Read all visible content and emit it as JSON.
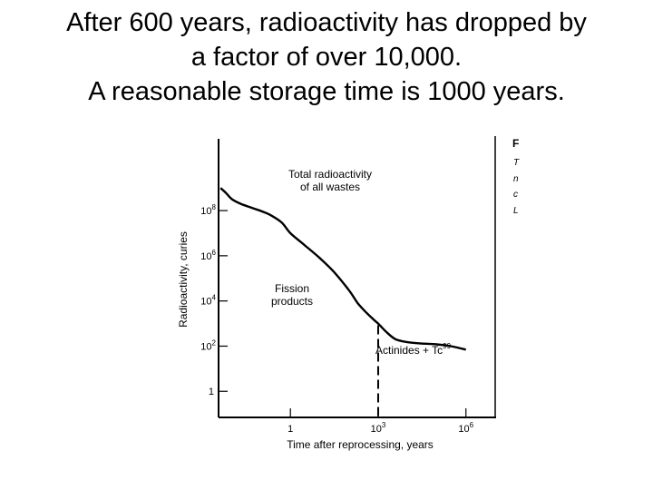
{
  "slide": {
    "line1": "After 600 years, radioactivity has dropped by",
    "line2": "a factor of over 10,000.",
    "line3": "A reasonable storage time is 1000 years."
  },
  "chart_data": {
    "type": "line",
    "xlabel": "Time after reprocessing, years",
    "ylabel": "Radioactivity, curies",
    "x_scale": "log",
    "y_scale": "log",
    "x_ticks": [
      {
        "value": 1,
        "base": "1",
        "exp": ""
      },
      {
        "value": 1000,
        "base": "10",
        "exp": "3"
      },
      {
        "value": 1000000,
        "base": "10",
        "exp": "6"
      }
    ],
    "y_ticks": [
      {
        "value": 1,
        "base": "1",
        "exp": ""
      },
      {
        "value": 100,
        "base": "10",
        "exp": "2"
      },
      {
        "value": 10000,
        "base": "10",
        "exp": "4"
      },
      {
        "value": 1000000,
        "base": "10",
        "exp": "6"
      },
      {
        "value": 100000000,
        "base": "10",
        "exp": "8"
      }
    ],
    "xlim": [
      0.0035,
      10000000
    ],
    "ylim": [
      0.07,
      150000000000
    ],
    "series": [
      {
        "name": "Total radioactivity of all wastes",
        "x": [
          0.0041,
          0.0063,
          0.01,
          0.02,
          0.05,
          0.1,
          0.2,
          0.5,
          1,
          3,
          10,
          30,
          100,
          200,
          400,
          700,
          1000,
          2000,
          4000,
          10000,
          30000,
          100000,
          300000,
          1000000
        ],
        "y": [
          1000000000,
          600000000,
          320000000,
          200000000,
          130000000,
          95000000,
          65000000,
          30000000,
          10000000,
          3000000,
          800000,
          200000,
          30000,
          8000,
          3000,
          1500,
          1000,
          400,
          200,
          150,
          130,
          120,
          100,
          70
        ]
      }
    ],
    "annotations": {
      "total_line1": "Total radioactivity",
      "total_line2": "of all wastes",
      "fission_line1": "Fission",
      "fission_line2": "products",
      "actinides_base": "Actinides + Tc",
      "actinides_sup": "99"
    },
    "divider_x": 1000,
    "caption_fragment": [
      "F",
      "T",
      "n",
      "c",
      "L"
    ]
  }
}
